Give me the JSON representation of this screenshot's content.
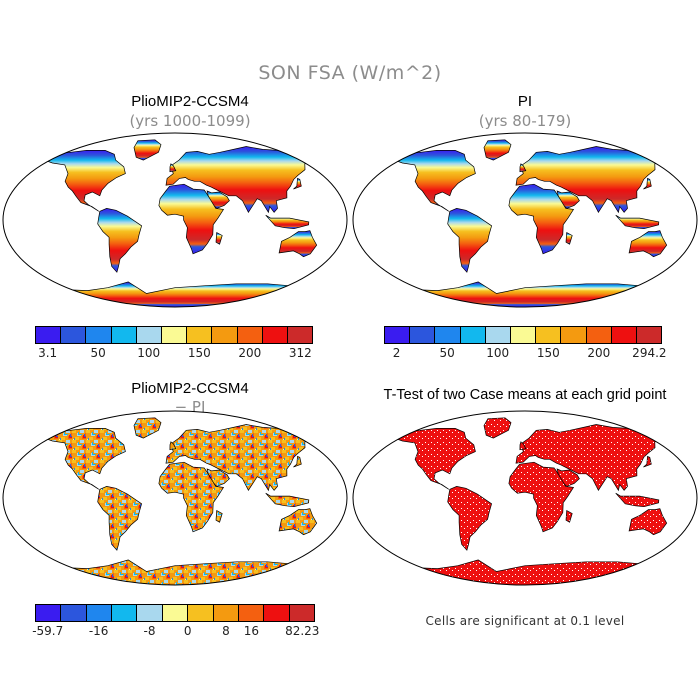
{
  "figure": {
    "title": "SON FSA (W/m^2)"
  },
  "panels": [
    {
      "title": "PlioMIP2-CCSM4",
      "subtitle": "(yrs 1000-1099)",
      "colorbar": {
        "colors": [
          "#3a1cf0",
          "#2c56dd",
          "#1f86ee",
          "#12b8ee",
          "#a9d8ee",
          "#fafa94",
          "#f6c020",
          "#f49a10",
          "#f46010",
          "#ee1010",
          "#cc2a2a"
        ],
        "tick_labels": [
          "3.1",
          "50",
          "100",
          "150",
          "200",
          "312"
        ]
      }
    },
    {
      "title": "PI",
      "subtitle": "(yrs 80-179)",
      "colorbar": {
        "colors": [
          "#3a1cf0",
          "#2c56dd",
          "#1f86ee",
          "#12b8ee",
          "#a9d8ee",
          "#fafa94",
          "#f6c020",
          "#f49a10",
          "#f46010",
          "#ee1010",
          "#cc2a2a"
        ],
        "tick_labels": [
          "2",
          "50",
          "100",
          "150",
          "200",
          "294.2"
        ]
      }
    },
    {
      "title": "PlioMIP2-CCSM4",
      "subtitle": "− PI",
      "colorbar": {
        "colors": [
          "#3a1cf0",
          "#2c56dd",
          "#1f86ee",
          "#12b8ee",
          "#a9d8ee",
          "#fafa94",
          "#f6c020",
          "#f49a10",
          "#f46010",
          "#ee1010",
          "#cc2a2a"
        ],
        "tick_labels": [
          "-59.7",
          "-16",
          "-8",
          "0",
          "8",
          "16",
          "82.23"
        ]
      }
    },
    {
      "title": "T-Test of two Case means at each grid point",
      "note": "Cells are significant at 0.1 level",
      "fill_color": "#ee1010"
    }
  ]
}
